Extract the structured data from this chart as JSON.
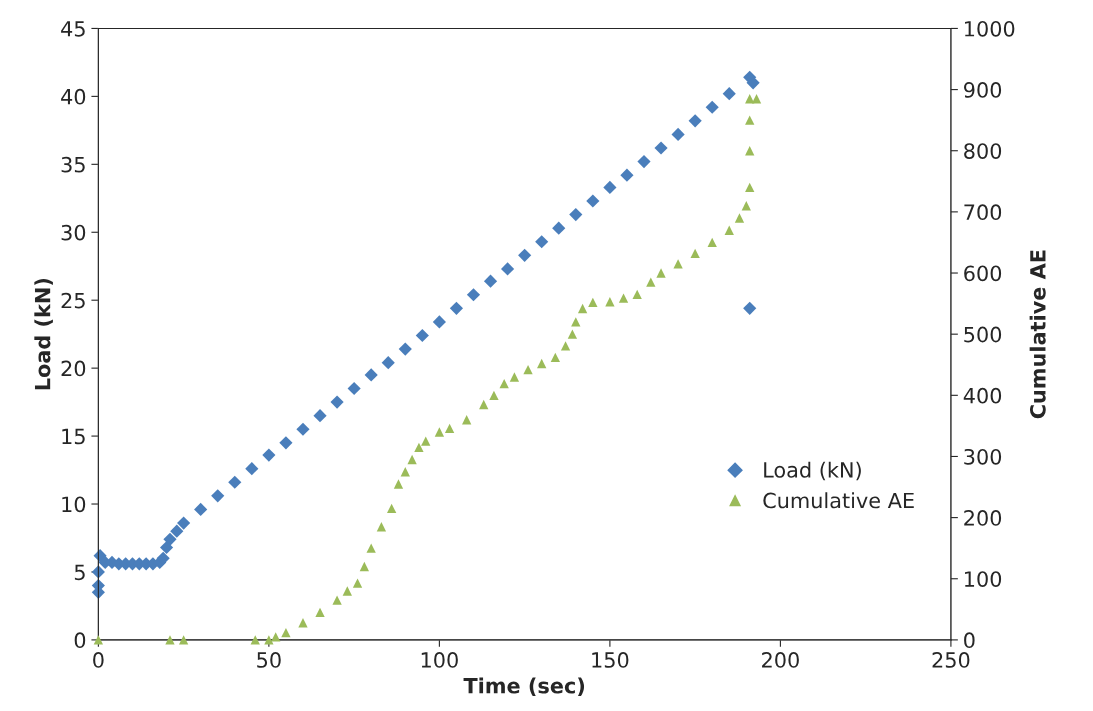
{
  "chart_data": {
    "type": "scatter",
    "xlabel": "Time (sec)",
    "ylabel": "Load (kN)",
    "y2label": "Cumulative AE",
    "xlim": [
      0,
      250
    ],
    "xticks": [
      0,
      50,
      100,
      150,
      200,
      250
    ],
    "ylim": [
      0,
      45
    ],
    "yticks": [
      0,
      5,
      10,
      15,
      20,
      25,
      30,
      35,
      40,
      45
    ],
    "y2lim": [
      0,
      1000
    ],
    "y2ticks": [
      0,
      100,
      200,
      300,
      400,
      500,
      600,
      700,
      800,
      900,
      1000
    ],
    "grid": false,
    "legend": "right",
    "series": [
      {
        "name": "Load (kN)",
        "color": "#4a7ebb",
        "marker": "diamond",
        "x": [
          0,
          0,
          0,
          0.5,
          2,
          4,
          6,
          8,
          10,
          12,
          14,
          16,
          18,
          19,
          20,
          21,
          23,
          25,
          30,
          35,
          40,
          45,
          50,
          55,
          60,
          65,
          70,
          75,
          80,
          85,
          90,
          95,
          100,
          105,
          110,
          115,
          120,
          125,
          130,
          135,
          140,
          145,
          150,
          155,
          160,
          165,
          170,
          175,
          180,
          185,
          191,
          192,
          191
        ],
        "values": [
          3.5,
          4.0,
          5.0,
          6.2,
          5.7,
          5.7,
          5.6,
          5.6,
          5.6,
          5.6,
          5.6,
          5.6,
          5.7,
          6.0,
          6.8,
          7.4,
          8.0,
          8.6,
          9.6,
          10.6,
          11.6,
          12.6,
          13.6,
          14.5,
          15.5,
          16.5,
          17.5,
          18.5,
          19.5,
          20.4,
          21.4,
          22.4,
          23.4,
          24.4,
          25.4,
          26.4,
          27.3,
          28.3,
          29.3,
          30.3,
          31.3,
          32.3,
          33.3,
          34.2,
          35.2,
          36.2,
          37.2,
          38.2,
          39.2,
          40.2,
          41.4,
          41.0,
          24.4
        ]
      },
      {
        "name": "Cumulative AE",
        "color": "#9bbb59",
        "marker": "triangle",
        "axis": "y2",
        "x": [
          0,
          21,
          25,
          46,
          50,
          52,
          55,
          60,
          65,
          70,
          73,
          76,
          78,
          80,
          83,
          86,
          88,
          90,
          92,
          94,
          96,
          100,
          103,
          108,
          113,
          116,
          119,
          122,
          126,
          130,
          134,
          137,
          139,
          140,
          142,
          145,
          150,
          154,
          158,
          162,
          165,
          170,
          175,
          180,
          185,
          188,
          190,
          191,
          191,
          191,
          191,
          193
        ],
        "values": [
          0,
          0,
          0,
          0,
          0,
          5,
          12,
          28,
          45,
          65,
          80,
          93,
          120,
          150,
          185,
          215,
          255,
          275,
          295,
          315,
          325,
          340,
          346,
          360,
          385,
          400,
          419,
          430,
          442,
          452,
          462,
          481,
          500,
          520,
          542,
          552,
          553,
          559,
          565,
          585,
          600,
          615,
          632,
          650,
          670,
          690,
          710,
          740,
          800,
          850,
          885,
          885
        ]
      }
    ]
  }
}
